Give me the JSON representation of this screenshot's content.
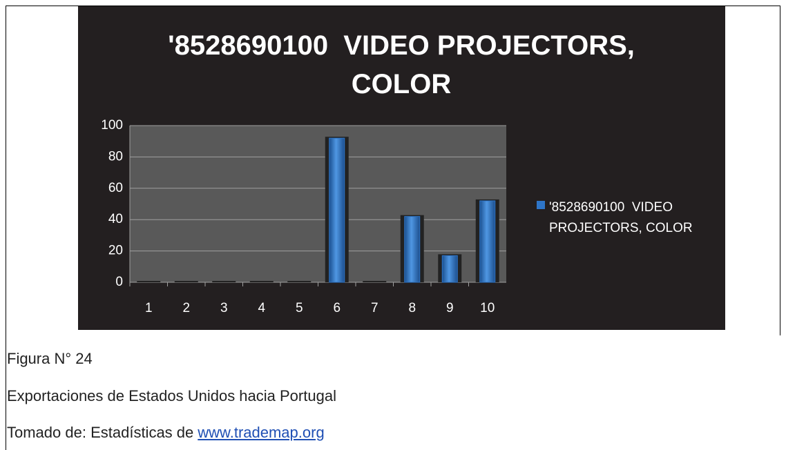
{
  "chart_data": {
    "type": "bar",
    "title": "'8528690100  VIDEO PROJECTORS, COLOR",
    "categories": [
      "1",
      "2",
      "3",
      "4",
      "5",
      "6",
      "7",
      "8",
      "9",
      "10"
    ],
    "series": [
      {
        "name": "'8528690100  VIDEO PROJECTORS, COLOR",
        "color": "#2e75c8",
        "values": [
          0,
          0,
          0,
          0,
          0,
          92,
          0,
          42,
          17,
          52
        ]
      }
    ],
    "ylim": [
      0,
      100
    ],
    "yticks": [
      0,
      20,
      40,
      60,
      80,
      100
    ],
    "grid": true,
    "legend": "right"
  },
  "caption": {
    "figure": "Figura N° 24",
    "description": "Exportaciones de Estados Unidos hacia Portugal",
    "source_prefix": "Tomado de: Estadísticas de",
    "source_link": "www.trademap.org"
  }
}
